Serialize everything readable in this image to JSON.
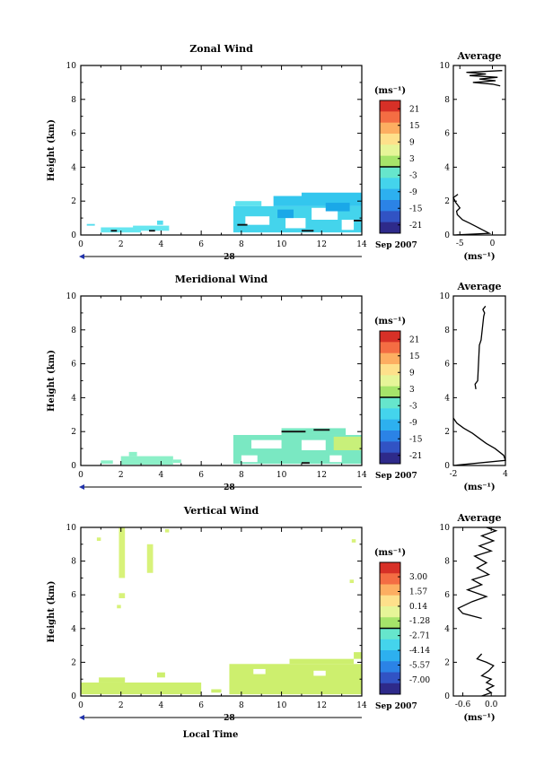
{
  "common": {
    "height_label": "Height (km)",
    "date_label": "Sep 2007",
    "day_label": "28",
    "unit_label": "(ms⁻¹)",
    "avg_title": "Average",
    "xlabel": "Local Time",
    "x_ticks": [
      "0",
      "2",
      "4",
      "6",
      "8",
      "10",
      "12",
      "14"
    ],
    "y_ticks": [
      "0",
      "2",
      "4",
      "6",
      "8",
      "10"
    ]
  },
  "chart_data": [
    {
      "type": "heatmap",
      "title": "Zonal Wind",
      "xlim": [
        0,
        14
      ],
      "ylim": [
        0,
        10
      ],
      "colorbar": {
        "labels": [
          "21",
          "15",
          "9",
          "3",
          "-3",
          "-9",
          "-15",
          "-21"
        ],
        "range": [
          -24,
          24
        ]
      },
      "cells": [
        {
          "x0": 0.3,
          "x1": 0.7,
          "y0": 0.55,
          "y1": 0.65,
          "c": "#55ddee"
        },
        {
          "x0": 1.0,
          "x1": 3.0,
          "y0": 0.15,
          "y1": 0.45,
          "c": "#66e6f0"
        },
        {
          "x0": 2.6,
          "x1": 4.4,
          "y0": 0.25,
          "y1": 0.55,
          "c": "#66e6f0"
        },
        {
          "x0": 3.8,
          "x1": 4.1,
          "y0": 0.6,
          "y1": 0.85,
          "c": "#55ddee"
        },
        {
          "x0": 7.6,
          "x1": 14.0,
          "y0": 0.15,
          "y1": 1.7,
          "c": "#44d4ec"
        },
        {
          "x0": 7.7,
          "x1": 9.0,
          "y0": 1.7,
          "y1": 2.0,
          "c": "#5fe2ee"
        },
        {
          "x0": 9.6,
          "x1": 14.0,
          "y0": 1.7,
          "y1": 2.3,
          "c": "#33c6ee"
        },
        {
          "x0": 11.0,
          "x1": 14.0,
          "y0": 2.2,
          "y1": 2.5,
          "c": "#33c6ee"
        },
        {
          "x0": 8.2,
          "x1": 9.4,
          "y0": 0.6,
          "y1": 1.1,
          "c": "#ffffff"
        },
        {
          "x0": 10.2,
          "x1": 11.2,
          "y0": 0.4,
          "y1": 1.0,
          "c": "#ffffff"
        },
        {
          "x0": 11.5,
          "x1": 12.8,
          "y0": 0.9,
          "y1": 1.6,
          "c": "#ffffff"
        },
        {
          "x0": 13.0,
          "x1": 13.6,
          "y0": 0.3,
          "y1": 0.9,
          "c": "#ffffff"
        },
        {
          "x0": 12.2,
          "x1": 13.4,
          "y0": 1.4,
          "y1": 1.9,
          "c": "#1aa8e8"
        },
        {
          "x0": 9.8,
          "x1": 10.6,
          "y0": 1.0,
          "y1": 1.5,
          "c": "#1aa8e8"
        }
      ],
      "dark_marks": [
        {
          "x0": 1.5,
          "x1": 1.8,
          "y0": 0.2,
          "y1": 0.3
        },
        {
          "x0": 3.4,
          "x1": 3.7,
          "y0": 0.2,
          "y1": 0.3
        },
        {
          "x0": 7.8,
          "x1": 8.3,
          "y0": 0.55,
          "y1": 0.65
        },
        {
          "x0": 11.0,
          "x1": 11.6,
          "y0": 0.2,
          "y1": 0.3
        },
        {
          "x0": 13.6,
          "x1": 14.0,
          "y0": 0.8,
          "y1": 0.9
        }
      ],
      "average": {
        "xlim": [
          -6,
          2
        ],
        "x_ticks": [
          {
            "v": -5,
            "l": "-5"
          },
          {
            "v": 0,
            "l": "0"
          }
        ],
        "profile": [
          [
            -5.8,
            0.0
          ],
          [
            -0.5,
            0.1
          ],
          [
            -1.5,
            0.3
          ],
          [
            -2.5,
            0.5
          ],
          [
            -3.5,
            0.7
          ],
          [
            -4.6,
            0.9
          ],
          [
            -5.4,
            1.2
          ],
          [
            -5.5,
            1.4
          ],
          [
            -5.0,
            1.6
          ],
          [
            -5.6,
            1.9
          ],
          [
            -6.0,
            2.2
          ],
          [
            -5.3,
            2.4
          ]
        ],
        "profile_upper": [
          [
            1.2,
            8.8
          ],
          [
            0.0,
            8.9
          ],
          [
            -3.0,
            9.0
          ],
          [
            0.5,
            9.1
          ],
          [
            -2.0,
            9.2
          ],
          [
            0.8,
            9.3
          ],
          [
            -3.5,
            9.4
          ],
          [
            -1.0,
            9.5
          ],
          [
            -4.0,
            9.6
          ],
          [
            1.5,
            9.7
          ]
        ]
      }
    },
    {
      "type": "heatmap",
      "title": "Meridional Wind",
      "xlim": [
        0,
        14
      ],
      "ylim": [
        0,
        10
      ],
      "colorbar": {
        "labels": [
          "21",
          "15",
          "9",
          "3",
          "-3",
          "-9",
          "-15",
          "-21"
        ],
        "range": [
          -24,
          24
        ]
      },
      "cells": [
        {
          "x0": 1.0,
          "x1": 1.6,
          "y0": 0.1,
          "y1": 0.3,
          "c": "#8cf0c8"
        },
        {
          "x0": 2.0,
          "x1": 4.6,
          "y0": 0.05,
          "y1": 0.55,
          "c": "#8cf0c8"
        },
        {
          "x0": 2.4,
          "x1": 2.8,
          "y0": 0.55,
          "y1": 0.8,
          "c": "#8cf0c8"
        },
        {
          "x0": 4.6,
          "x1": 5.0,
          "y0": 0.15,
          "y1": 0.35,
          "c": "#8cf0c8"
        },
        {
          "x0": 7.6,
          "x1": 14.0,
          "y0": 0.1,
          "y1": 1.8,
          "c": "#7ae8c2"
        },
        {
          "x0": 10.0,
          "x1": 13.2,
          "y0": 1.8,
          "y1": 2.2,
          "c": "#7ae8c2"
        },
        {
          "x0": 8.5,
          "x1": 10.0,
          "y0": 1.0,
          "y1": 1.5,
          "c": "#ffffff"
        },
        {
          "x0": 8.0,
          "x1": 8.8,
          "y0": 0.2,
          "y1": 0.6,
          "c": "#ffffff"
        },
        {
          "x0": 11.0,
          "x1": 12.2,
          "y0": 0.9,
          "y1": 1.5,
          "c": "#ffffff"
        },
        {
          "x0": 12.4,
          "x1": 13.0,
          "y0": 0.2,
          "y1": 0.6,
          "c": "#ffffff"
        },
        {
          "x0": 12.6,
          "x1": 14.0,
          "y0": 0.9,
          "y1": 1.7,
          "c": "#c8f07a"
        }
      ],
      "dark_marks": [
        {
          "x0": 10.0,
          "x1": 11.2,
          "y0": 1.95,
          "y1": 2.05
        },
        {
          "x0": 11.6,
          "x1": 12.4,
          "y0": 2.05,
          "y1": 2.15
        },
        {
          "x0": 11.0,
          "x1": 11.4,
          "y0": 0.1,
          "y1": 0.2
        }
      ],
      "average": {
        "xlim": [
          -2,
          4
        ],
        "x_ticks": [
          {
            "v": -2,
            "l": "-2"
          },
          {
            "v": 4,
            "l": "4"
          }
        ],
        "profile": [
          [
            -2.0,
            0.0
          ],
          [
            4.0,
            0.3
          ],
          [
            3.8,
            0.6
          ],
          [
            2.8,
            1.0
          ],
          [
            1.8,
            1.3
          ],
          [
            1.0,
            1.6
          ],
          [
            0.2,
            1.9
          ],
          [
            -0.8,
            2.2
          ],
          [
            -1.6,
            2.5
          ],
          [
            -2.0,
            2.8
          ]
        ],
        "profile_upper": [
          [
            0.6,
            4.5
          ],
          [
            0.5,
            4.8
          ],
          [
            0.8,
            5.0
          ],
          [
            1.0,
            7.1
          ],
          [
            1.2,
            7.4
          ],
          [
            1.5,
            8.8
          ],
          [
            1.6,
            9.0
          ],
          [
            1.4,
            9.2
          ],
          [
            1.7,
            9.4
          ]
        ]
      }
    },
    {
      "type": "heatmap",
      "title": "Vertical Wind",
      "xlim": [
        0,
        14
      ],
      "ylim": [
        0,
        10
      ],
      "colorbar": {
        "labels": [
          "3.00",
          "1.57",
          "0.14",
          "-1.28",
          "-2.71",
          "-4.14",
          "-5.57",
          "-7.00"
        ],
        "range": [
          -8.4,
          4.4
        ]
      },
      "cells": [
        {
          "x0": 0.0,
          "x1": 6.0,
          "y0": 0.1,
          "y1": 0.8,
          "c": "#cdef6e"
        },
        {
          "x0": 0.9,
          "x1": 2.2,
          "y0": 0.8,
          "y1": 1.1,
          "c": "#cdef6e"
        },
        {
          "x0": 3.8,
          "x1": 4.2,
          "y0": 1.1,
          "y1": 1.4,
          "c": "#cdef6e"
        },
        {
          "x0": 6.5,
          "x1": 7.0,
          "y0": 0.2,
          "y1": 0.4,
          "c": "#cdef6e"
        },
        {
          "x0": 7.4,
          "x1": 14.0,
          "y0": 0.1,
          "y1": 1.9,
          "c": "#cdef6e"
        },
        {
          "x0": 10.4,
          "x1": 13.6,
          "y0": 1.9,
          "y1": 2.2,
          "c": "#cdef6e"
        },
        {
          "x0": 13.6,
          "x1": 14.0,
          "y0": 2.2,
          "y1": 2.6,
          "c": "#cdef6e"
        },
        {
          "x0": 1.9,
          "x1": 2.2,
          "y0": 7.0,
          "y1": 10.0,
          "c": "#d8f27a"
        },
        {
          "x0": 3.3,
          "x1": 3.6,
          "y0": 7.3,
          "y1": 9.0,
          "c": "#d8f27a"
        },
        {
          "x0": 1.9,
          "x1": 2.2,
          "y0": 5.8,
          "y1": 6.1,
          "c": "#d8f27a"
        },
        {
          "x0": 0.8,
          "x1": 1.0,
          "y0": 9.2,
          "y1": 9.4,
          "c": "#d8f27a"
        },
        {
          "x0": 4.2,
          "x1": 4.4,
          "y0": 9.7,
          "y1": 9.9,
          "c": "#d8f27a"
        },
        {
          "x0": 1.8,
          "x1": 2.0,
          "y0": 5.2,
          "y1": 5.4,
          "c": "#d8f27a"
        },
        {
          "x0": 13.4,
          "x1": 13.6,
          "y0": 6.7,
          "y1": 6.9,
          "c": "#d8f27a"
        },
        {
          "x0": 13.5,
          "x1": 13.7,
          "y0": 9.1,
          "y1": 9.3,
          "c": "#d8f27a"
        },
        {
          "x0": 8.6,
          "x1": 9.2,
          "y0": 1.3,
          "y1": 1.6,
          "c": "#ffffff"
        },
        {
          "x0": 11.6,
          "x1": 12.2,
          "y0": 1.2,
          "y1": 1.5,
          "c": "#ffffff"
        }
      ],
      "dark_marks": [],
      "average": {
        "xlim": [
          -0.8,
          0.3
        ],
        "x_ticks": [
          {
            "v": -0.6,
            "l": "-0.6"
          },
          {
            "v": 0.0,
            "l": "0.0"
          }
        ],
        "profile": [
          [
            -0.2,
            0.0
          ],
          [
            0.0,
            0.2
          ],
          [
            -0.1,
            0.4
          ],
          [
            0.05,
            0.6
          ],
          [
            -0.1,
            0.8
          ],
          [
            0.0,
            1.0
          ],
          [
            -0.2,
            1.2
          ],
          [
            -0.05,
            1.5
          ],
          [
            0.05,
            1.8
          ],
          [
            -0.1,
            2.0
          ],
          [
            -0.3,
            2.2
          ],
          [
            -0.2,
            2.5
          ]
        ],
        "profile_upper": [
          [
            -0.2,
            4.6
          ],
          [
            -0.6,
            4.9
          ],
          [
            -0.7,
            5.2
          ],
          [
            -0.4,
            5.6
          ],
          [
            -0.1,
            5.9
          ],
          [
            -0.5,
            6.3
          ],
          [
            -0.2,
            6.6
          ],
          [
            -0.4,
            6.9
          ],
          [
            -0.05,
            7.2
          ],
          [
            -0.3,
            7.6
          ],
          [
            -0.1,
            7.9
          ],
          [
            -0.35,
            8.3
          ],
          [
            0.0,
            8.6
          ],
          [
            -0.25,
            8.9
          ],
          [
            0.05,
            9.2
          ],
          [
            -0.2,
            9.5
          ],
          [
            0.1,
            9.8
          ],
          [
            -0.1,
            10.0
          ]
        ]
      }
    }
  ]
}
